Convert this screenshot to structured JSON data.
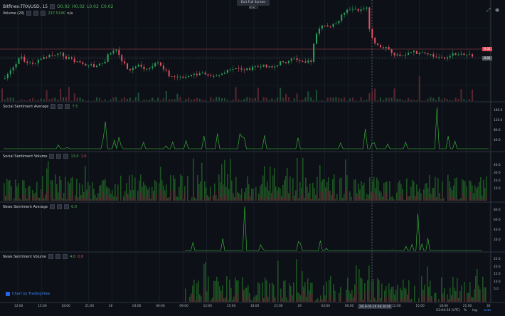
{
  "window": {
    "exit_fullscreen_label": "Exit Full Screen (ESC)"
  },
  "header": {
    "symbol": "Bitfinex:TRX/USD, 15",
    "ohlc": {
      "o": "O0.02",
      "h": "H0.02",
      "l": "L0.02",
      "c": "C0.02"
    },
    "volume_label": "Volume (20)",
    "volume_value": "237.514K",
    "volume_na": "n/a"
  },
  "panes": {
    "social_avg": {
      "title": "Social Sentiment Average",
      "value": "7.5"
    },
    "social_vol": {
      "title": "Social Sentiment Volume",
      "value_a": "13.0",
      "value_b": "1.0"
    },
    "news_avg": {
      "title": "News Sentiment Average",
      "value": "0.0"
    },
    "news_vol": {
      "title": "News Sentiment Volume",
      "value_a": "4.0",
      "value_b": "0.0"
    }
  },
  "price_badges": {
    "top": "0.02",
    "bottom": "0.02"
  },
  "axes": {
    "social_avg_ticks": [
      "160.0",
      "120.0",
      "80.0",
      "40.0"
    ],
    "social_vol_ticks": [
      "40.0",
      "30.0",
      "20.0",
      "10.0"
    ],
    "news_avg_ticks": [
      "80.0",
      "60.0",
      "40.0",
      "20.0"
    ],
    "news_vol_ticks": [
      "25.0",
      "20.0",
      "15.0",
      "10.0",
      "5.0"
    ],
    "time_ticks": [
      "12:00",
      "15:00",
      "18:00",
      "21:00",
      "28",
      "03:00",
      "06:00",
      "09:00",
      "12:00",
      "15:00",
      "18:00",
      "21:00",
      "29",
      "03:00",
      "06:00",
      "09:00",
      "12:00",
      "15:00",
      "18:00",
      "21:00",
      "30"
    ]
  },
  "crosshair_time": "2018-05-29 08:30:00",
  "footer": {
    "logo_text": "Chart by TradingView",
    "clock": "03:04:56 (UTC)",
    "percent": "%",
    "log": "log",
    "auto": "auto"
  },
  "colors": {
    "bg": "#0d1117",
    "up": "#26a65b",
    "down": "#e04f5f",
    "line": "#3ac43a",
    "grid": "#1c2330"
  }
}
